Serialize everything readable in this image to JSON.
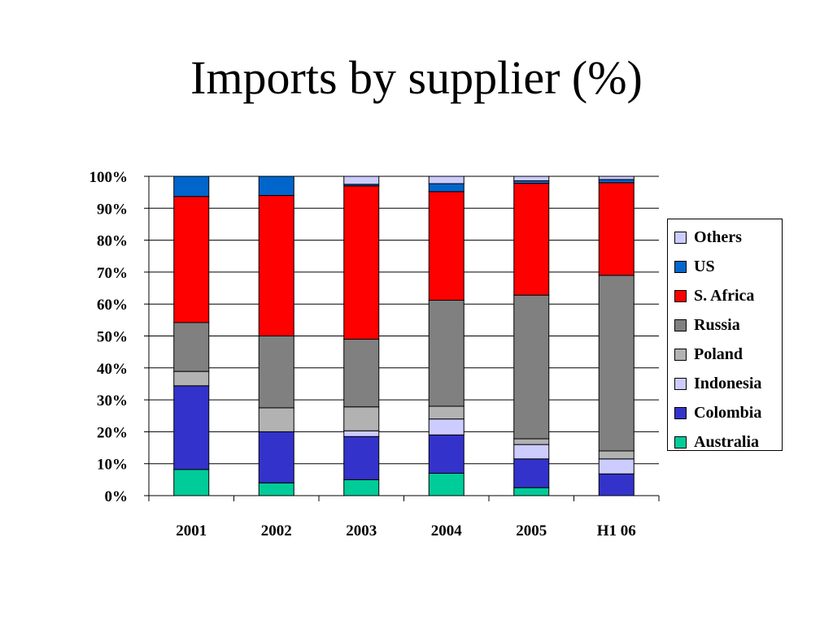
{
  "slide": {
    "title": "Imports by supplier (%)"
  },
  "chart_data": {
    "type": "bar",
    "stacked": true,
    "percent": true,
    "title": "",
    "xlabel": "",
    "ylabel": "",
    "ylim": [
      0,
      100
    ],
    "y_ticks": [
      "0%",
      "10%",
      "20%",
      "30%",
      "40%",
      "50%",
      "60%",
      "70%",
      "80%",
      "90%",
      "100%"
    ],
    "categories": [
      "2001",
      "2002",
      "2003",
      "2004",
      "2005",
      "H1 06"
    ],
    "grid": true,
    "legend_position": "right",
    "series": [
      {
        "name": "Australia",
        "color": "#00cc99",
        "values": [
          8.2,
          4.0,
          5.0,
          7.0,
          2.5,
          0.0
        ]
      },
      {
        "name": "Colombia",
        "color": "#3333cc",
        "values": [
          26.2,
          16.0,
          13.5,
          12.0,
          9.0,
          6.8
        ]
      },
      {
        "name": "Indonesia",
        "color": "#ccccff",
        "values": [
          0.0,
          0.0,
          1.8,
          5.0,
          4.5,
          4.7
        ]
      },
      {
        "name": "Poland",
        "color": "#b2b2b2",
        "values": [
          4.5,
          7.5,
          7.5,
          4.0,
          1.8,
          2.5
        ]
      },
      {
        "name": "Russia",
        "color": "#808080",
        "values": [
          15.3,
          22.5,
          21.2,
          33.2,
          45.0,
          55.0
        ]
      },
      {
        "name": "S. Africa",
        "color": "#ff0000",
        "values": [
          39.5,
          44.0,
          48.0,
          34.0,
          35.0,
          29.0
        ]
      },
      {
        "name": "US",
        "color": "#0066cc",
        "values": [
          6.3,
          6.0,
          0.5,
          2.5,
          0.8,
          1.0
        ]
      },
      {
        "name": "Others",
        "color": "#ccccff",
        "values": [
          0.0,
          0.0,
          2.5,
          2.3,
          1.4,
          1.0
        ]
      }
    ]
  }
}
